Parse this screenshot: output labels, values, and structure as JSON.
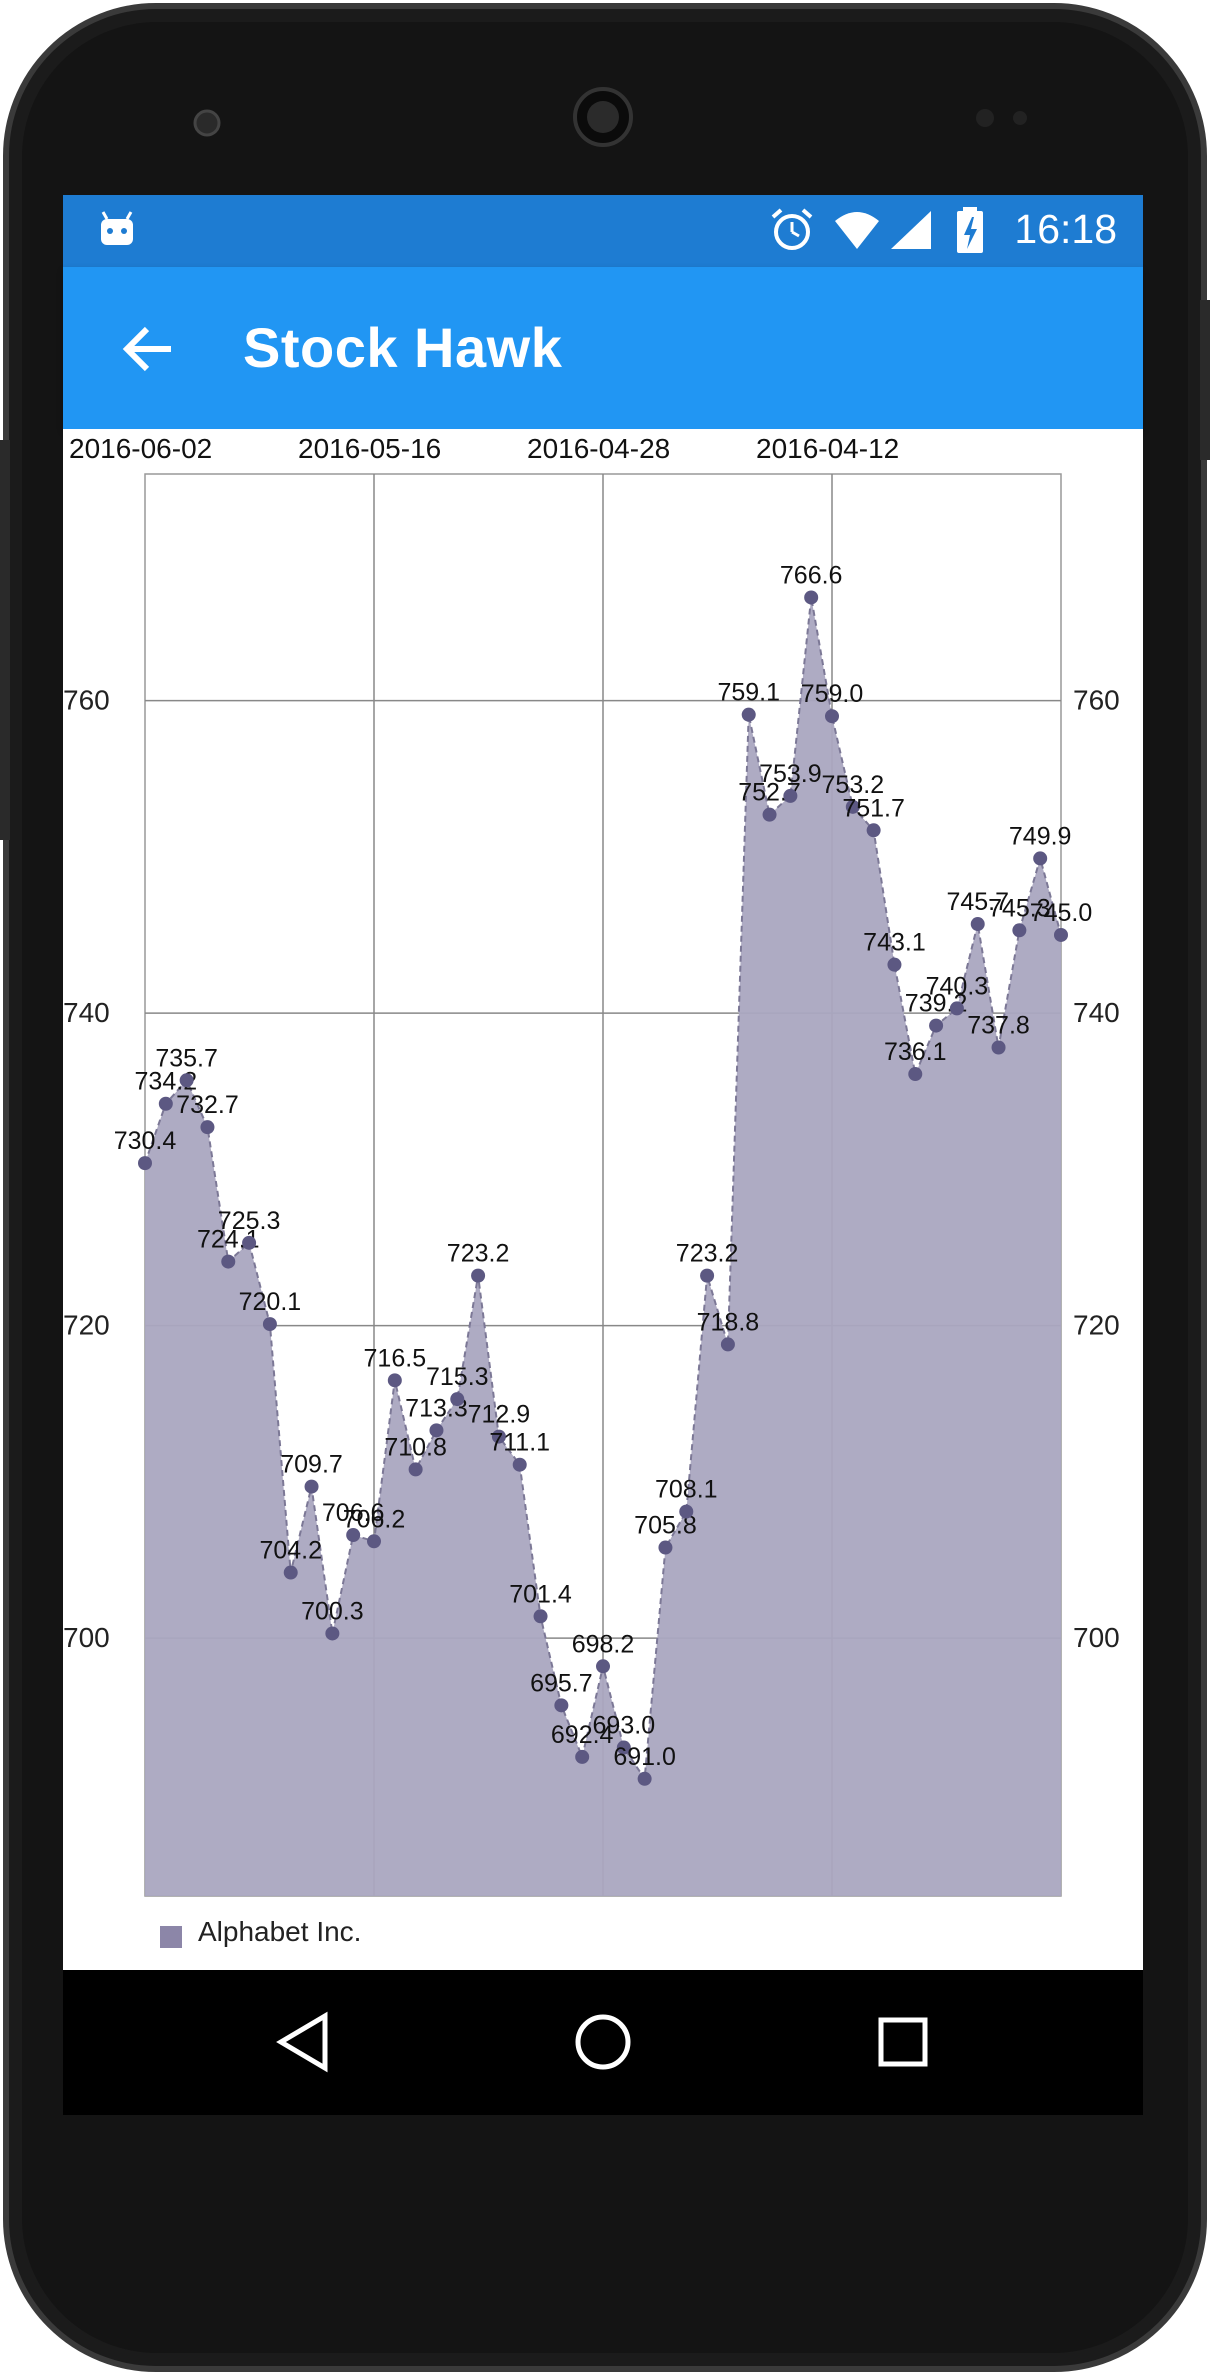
{
  "status_bar": {
    "time": "16:18",
    "icons": [
      "android-icon",
      "alarm-icon",
      "wifi-icon",
      "signal-icon",
      "battery-charging-icon"
    ]
  },
  "app_bar": {
    "title": "Stock Hawk",
    "back_icon": "arrow-back-icon"
  },
  "chart_data": {
    "type": "area",
    "x_tick_labels": [
      "2016-06-02",
      "2016-05-16",
      "2016-04-28",
      "2016-04-12"
    ],
    "y_tick_labels": [
      "700",
      "720",
      "740",
      "760"
    ],
    "ylim": [
      683.5,
      774.5
    ],
    "grid": true,
    "legend_position": "bottom-left",
    "series": [
      {
        "name": "Alphabet Inc.",
        "color": "#8c86a8",
        "values": [
          730.4,
          734.2,
          735.7,
          732.7,
          724.1,
          725.3,
          720.1,
          704.2,
          709.7,
          700.3,
          706.6,
          706.2,
          716.5,
          710.8,
          713.3,
          715.3,
          723.2,
          712.9,
          711.1,
          701.4,
          695.7,
          692.4,
          698.2,
          693.0,
          691.0,
          705.8,
          708.1,
          723.2,
          718.8,
          759.1,
          752.7,
          753.9,
          766.6,
          759.0,
          753.2,
          751.7,
          743.1,
          736.1,
          739.2,
          740.3,
          745.7,
          737.8,
          745.3,
          749.9,
          745.0
        ]
      }
    ]
  },
  "nav_bar": {
    "back": "nav-back-icon",
    "home": "nav-home-icon",
    "recents": "nav-recents-icon"
  },
  "colors": {
    "status_bar": "#1e7cd2",
    "app_bar": "#2196f3",
    "area_fill": "#aaa7c0",
    "point": "#5c5882"
  }
}
